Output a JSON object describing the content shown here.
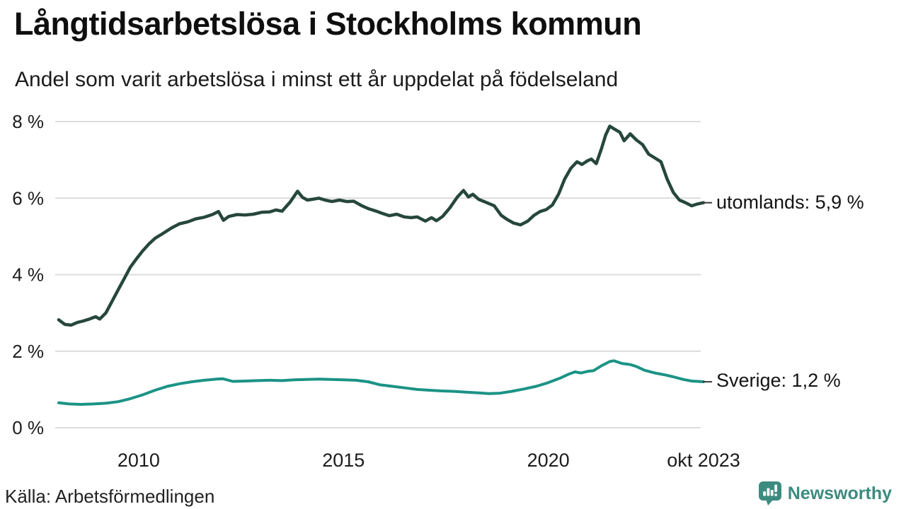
{
  "header": {
    "title": "Långtidsarbetslösa i Stockholms kommun",
    "subtitle": "Andel som varit arbetslösa i minst ett år uppdelat på födelseland"
  },
  "footer": {
    "source": "Källa: Arbetsförmedlingen",
    "brand": "Newsworthy",
    "brand_color": "#3c8b80"
  },
  "chart_data": {
    "type": "line",
    "title": "Långtidsarbetslösa i Stockholms kommun",
    "subtitle": "Andel som varit arbetslösa i minst ett år uppdelat på födelseland",
    "grid": true,
    "grid_color": "#dcdcdc",
    "connector_color": "#3c3c3c",
    "xlim": [
      2008.05,
      2023.79
    ],
    "ylim": [
      0,
      8
    ],
    "y_ticks": [
      {
        "label": "8 %",
        "value": 8
      },
      {
        "label": "6 %",
        "value": 6
      },
      {
        "label": "4 %",
        "value": 4
      },
      {
        "label": "2 %",
        "value": 2
      },
      {
        "label": "0 %",
        "value": 0
      }
    ],
    "x_ticks": [
      {
        "label": "2010",
        "year": 2010
      },
      {
        "label": "2015",
        "year": 2015
      },
      {
        "label": "2020",
        "year": 2020
      },
      {
        "label": "okt 2023",
        "year": 2023.79
      }
    ],
    "legend_position": "right-end-labels",
    "series": [
      {
        "name": "utomlands",
        "end_label": "utomlands: 5,9 %",
        "end_value": "5,9 %",
        "color": "#26473c",
        "points": [
          [
            2008.05,
            2.82
          ],
          [
            2008.2,
            2.7
          ],
          [
            2008.35,
            2.68
          ],
          [
            2008.5,
            2.75
          ],
          [
            2008.65,
            2.79
          ],
          [
            2008.8,
            2.84
          ],
          [
            2008.95,
            2.9
          ],
          [
            2009.05,
            2.84
          ],
          [
            2009.2,
            3.0
          ],
          [
            2009.35,
            3.3
          ],
          [
            2009.5,
            3.6
          ],
          [
            2009.65,
            3.9
          ],
          [
            2009.8,
            4.2
          ],
          [
            2009.95,
            4.42
          ],
          [
            2010.1,
            4.62
          ],
          [
            2010.25,
            4.8
          ],
          [
            2010.4,
            4.95
          ],
          [
            2010.6,
            5.08
          ],
          [
            2010.8,
            5.22
          ],
          [
            2011.0,
            5.33
          ],
          [
            2011.2,
            5.38
          ],
          [
            2011.4,
            5.46
          ],
          [
            2011.6,
            5.5
          ],
          [
            2011.8,
            5.57
          ],
          [
            2011.95,
            5.65
          ],
          [
            2012.07,
            5.42
          ],
          [
            2012.2,
            5.52
          ],
          [
            2012.4,
            5.57
          ],
          [
            2012.6,
            5.56
          ],
          [
            2012.8,
            5.58
          ],
          [
            2013.0,
            5.63
          ],
          [
            2013.2,
            5.64
          ],
          [
            2013.35,
            5.69
          ],
          [
            2013.5,
            5.66
          ],
          [
            2013.7,
            5.9
          ],
          [
            2013.88,
            6.18
          ],
          [
            2014.0,
            6.02
          ],
          [
            2014.12,
            5.95
          ],
          [
            2014.25,
            5.97
          ],
          [
            2014.4,
            6.0
          ],
          [
            2014.55,
            5.95
          ],
          [
            2014.72,
            5.91
          ],
          [
            2014.9,
            5.95
          ],
          [
            2015.08,
            5.91
          ],
          [
            2015.25,
            5.92
          ],
          [
            2015.45,
            5.8
          ],
          [
            2015.62,
            5.72
          ],
          [
            2015.8,
            5.66
          ],
          [
            2015.95,
            5.6
          ],
          [
            2016.12,
            5.54
          ],
          [
            2016.3,
            5.58
          ],
          [
            2016.48,
            5.51
          ],
          [
            2016.65,
            5.49
          ],
          [
            2016.8,
            5.51
          ],
          [
            2017.0,
            5.4
          ],
          [
            2017.15,
            5.49
          ],
          [
            2017.27,
            5.41
          ],
          [
            2017.42,
            5.52
          ],
          [
            2017.6,
            5.75
          ],
          [
            2017.78,
            6.03
          ],
          [
            2017.93,
            6.2
          ],
          [
            2018.05,
            6.03
          ],
          [
            2018.16,
            6.1
          ],
          [
            2018.3,
            5.97
          ],
          [
            2018.5,
            5.88
          ],
          [
            2018.68,
            5.8
          ],
          [
            2018.85,
            5.55
          ],
          [
            2019.0,
            5.44
          ],
          [
            2019.15,
            5.35
          ],
          [
            2019.32,
            5.3
          ],
          [
            2019.5,
            5.4
          ],
          [
            2019.65,
            5.55
          ],
          [
            2019.8,
            5.65
          ],
          [
            2019.95,
            5.7
          ],
          [
            2020.1,
            5.82
          ],
          [
            2020.25,
            6.1
          ],
          [
            2020.4,
            6.5
          ],
          [
            2020.55,
            6.78
          ],
          [
            2020.7,
            6.95
          ],
          [
            2020.82,
            6.88
          ],
          [
            2020.95,
            6.97
          ],
          [
            2021.05,
            7.02
          ],
          [
            2021.17,
            6.9
          ],
          [
            2021.3,
            7.3
          ],
          [
            2021.4,
            7.65
          ],
          [
            2021.5,
            7.88
          ],
          [
            2021.62,
            7.8
          ],
          [
            2021.75,
            7.72
          ],
          [
            2021.85,
            7.5
          ],
          [
            2022.0,
            7.68
          ],
          [
            2022.15,
            7.52
          ],
          [
            2022.3,
            7.4
          ],
          [
            2022.45,
            7.15
          ],
          [
            2022.6,
            7.05
          ],
          [
            2022.75,
            6.95
          ],
          [
            2022.9,
            6.5
          ],
          [
            2023.05,
            6.15
          ],
          [
            2023.2,
            5.95
          ],
          [
            2023.35,
            5.88
          ],
          [
            2023.5,
            5.8
          ],
          [
            2023.65,
            5.85
          ],
          [
            2023.79,
            5.88
          ]
        ]
      },
      {
        "name": "Sverige",
        "end_label": "Sverige: 1,2 %",
        "end_value": "1,2 %",
        "color": "#1b9385",
        "points": [
          [
            2008.05,
            0.65
          ],
          [
            2008.3,
            0.62
          ],
          [
            2008.6,
            0.61
          ],
          [
            2008.9,
            0.62
          ],
          [
            2009.2,
            0.64
          ],
          [
            2009.5,
            0.68
          ],
          [
            2009.8,
            0.76
          ],
          [
            2010.1,
            0.86
          ],
          [
            2010.4,
            0.98
          ],
          [
            2010.7,
            1.08
          ],
          [
            2011.0,
            1.15
          ],
          [
            2011.3,
            1.2
          ],
          [
            2011.6,
            1.24
          ],
          [
            2011.9,
            1.27
          ],
          [
            2012.05,
            1.28
          ],
          [
            2012.3,
            1.21
          ],
          [
            2012.6,
            1.22
          ],
          [
            2012.9,
            1.23
          ],
          [
            2013.2,
            1.24
          ],
          [
            2013.5,
            1.23
          ],
          [
            2013.8,
            1.25
          ],
          [
            2014.1,
            1.26
          ],
          [
            2014.4,
            1.27
          ],
          [
            2014.7,
            1.26
          ],
          [
            2015.0,
            1.25
          ],
          [
            2015.3,
            1.24
          ],
          [
            2015.6,
            1.2
          ],
          [
            2015.9,
            1.12
          ],
          [
            2016.2,
            1.08
          ],
          [
            2016.5,
            1.04
          ],
          [
            2016.8,
            1.0
          ],
          [
            2017.1,
            0.98
          ],
          [
            2017.4,
            0.96
          ],
          [
            2017.7,
            0.95
          ],
          [
            2018.0,
            0.93
          ],
          [
            2018.3,
            0.91
          ],
          [
            2018.55,
            0.89
          ],
          [
            2018.8,
            0.9
          ],
          [
            2019.1,
            0.95
          ],
          [
            2019.4,
            1.01
          ],
          [
            2019.7,
            1.08
          ],
          [
            2019.95,
            1.16
          ],
          [
            2020.1,
            1.22
          ],
          [
            2020.3,
            1.3
          ],
          [
            2020.5,
            1.4
          ],
          [
            2020.65,
            1.46
          ],
          [
            2020.8,
            1.43
          ],
          [
            2020.95,
            1.47
          ],
          [
            2021.1,
            1.49
          ],
          [
            2021.3,
            1.62
          ],
          [
            2021.5,
            1.73
          ],
          [
            2021.6,
            1.75
          ],
          [
            2021.8,
            1.68
          ],
          [
            2022.0,
            1.65
          ],
          [
            2022.15,
            1.6
          ],
          [
            2022.35,
            1.5
          ],
          [
            2022.6,
            1.43
          ],
          [
            2022.85,
            1.38
          ],
          [
            2023.05,
            1.33
          ],
          [
            2023.3,
            1.26
          ],
          [
            2023.5,
            1.22
          ],
          [
            2023.65,
            1.21
          ],
          [
            2023.79,
            1.2
          ]
        ]
      }
    ]
  }
}
